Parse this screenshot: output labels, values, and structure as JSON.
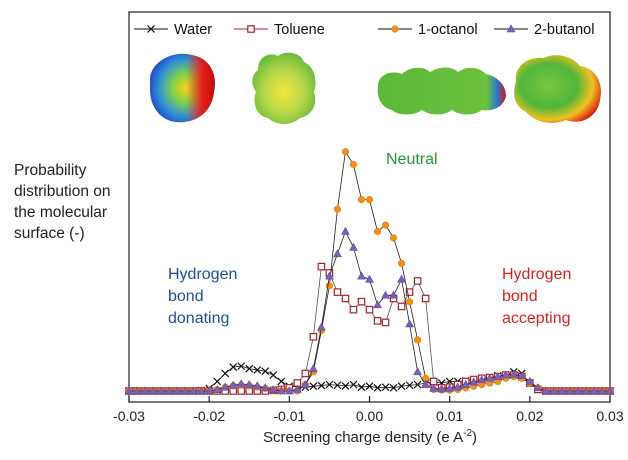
{
  "chart_data": {
    "type": "line",
    "title": "",
    "ylabel_lines": [
      "Probability",
      "distribution on",
      "the molecular",
      "surface (-)"
    ],
    "xlabel": "Screening charge density (e A",
    "xlabel_sup": "-2",
    "xlabel_end": ")",
    "xlim": [
      -0.03,
      0.03
    ],
    "ylim": [
      0,
      1
    ],
    "xticks": [
      -0.03,
      -0.02,
      -0.01,
      0.0,
      0.01,
      0.02,
      0.03
    ],
    "xtick_labels": [
      "-0.03",
      "-0.02",
      "-0.01",
      "0.00",
      "0.01",
      "0.02",
      "0.03"
    ],
    "legend_position": "top",
    "annotations": [
      {
        "id": "donating",
        "lines": [
          "Hydrogen",
          "bond",
          "donating"
        ],
        "color": "#1f4e9a"
      },
      {
        "id": "neutral",
        "lines": [
          "Neutral"
        ],
        "color": "#1e9a3a"
      },
      {
        "id": "accepting",
        "lines": [
          "Hydrogen",
          "bond",
          "accepting"
        ],
        "color": "#e02020"
      }
    ],
    "series": [
      {
        "name": "Water",
        "color": "#111111",
        "marker": "x",
        "x": [
          -0.03,
          -0.029,
          -0.028,
          -0.027,
          -0.026,
          -0.025,
          -0.024,
          -0.023,
          -0.022,
          -0.021,
          -0.02,
          -0.019,
          -0.018,
          -0.017,
          -0.016,
          -0.015,
          -0.014,
          -0.013,
          -0.012,
          -0.011,
          -0.01,
          -0.009,
          -0.008,
          -0.007,
          -0.006,
          -0.005,
          -0.004,
          -0.003,
          -0.002,
          -0.001,
          0.0,
          0.001,
          0.002,
          0.003,
          0.004,
          0.005,
          0.006,
          0.007,
          0.008,
          0.009,
          0.01,
          0.011,
          0.012,
          0.013,
          0.014,
          0.015,
          0.016,
          0.017,
          0.018,
          0.019,
          0.02,
          0.021,
          0.022,
          0.023,
          0.024,
          0.025,
          0.026,
          0.027,
          0.028,
          0.029,
          0.03
        ],
        "y": [
          0.0,
          0.0,
          0.0,
          0.0,
          0.0,
          0.0,
          0.0,
          0.0,
          0.0,
          0.002,
          0.008,
          0.03,
          0.055,
          0.075,
          0.078,
          0.07,
          0.066,
          0.062,
          0.05,
          0.03,
          0.015,
          0.013,
          0.012,
          0.015,
          0.017,
          0.02,
          0.018,
          0.016,
          0.02,
          0.012,
          0.015,
          0.01,
          0.012,
          0.01,
          0.015,
          0.018,
          0.02,
          0.025,
          0.028,
          0.025,
          0.03,
          0.03,
          0.032,
          0.036,
          0.04,
          0.042,
          0.048,
          0.05,
          0.06,
          0.055,
          0.025,
          0.005,
          0.0,
          0.0,
          0.0,
          0.0,
          0.0,
          0.0,
          0.0,
          0.0,
          0.0
        ]
      },
      {
        "name": "Toluene",
        "color": "#a8242c",
        "marker": "square",
        "x": [
          -0.03,
          -0.029,
          -0.028,
          -0.027,
          -0.026,
          -0.025,
          -0.024,
          -0.023,
          -0.022,
          -0.021,
          -0.02,
          -0.019,
          -0.018,
          -0.017,
          -0.016,
          -0.015,
          -0.014,
          -0.013,
          -0.012,
          -0.011,
          -0.01,
          -0.009,
          -0.008,
          -0.007,
          -0.006,
          -0.005,
          -0.004,
          -0.003,
          -0.002,
          -0.001,
          0.0,
          0.001,
          0.002,
          0.003,
          0.004,
          0.005,
          0.006,
          0.007,
          0.008,
          0.009,
          0.01,
          0.011,
          0.012,
          0.013,
          0.014,
          0.015,
          0.016,
          0.017,
          0.018,
          0.019,
          0.02,
          0.021,
          0.022,
          0.023,
          0.024,
          0.025,
          0.026,
          0.027,
          0.028,
          0.029,
          0.03
        ],
        "y": [
          0.0,
          0.0,
          0.0,
          0.0,
          0.0,
          0.0,
          0.0,
          0.0,
          0.0,
          0.0,
          0.0,
          0.0,
          0.0,
          0.0,
          0.0,
          0.0,
          0.0,
          0.0,
          0.002,
          0.005,
          0.01,
          0.025,
          0.055,
          0.17,
          0.39,
          0.37,
          0.31,
          0.29,
          0.255,
          0.28,
          0.255,
          0.22,
          0.215,
          0.29,
          0.265,
          0.31,
          0.345,
          0.29,
          0.03,
          0.01,
          0.012,
          0.02,
          0.03,
          0.036,
          0.04,
          0.042,
          0.045,
          0.05,
          0.05,
          0.045,
          0.025,
          0.005,
          0.0,
          0.0,
          0.0,
          0.0,
          0.0,
          0.0,
          0.0,
          0.0,
          0.0
        ]
      },
      {
        "name": "1-octanol",
        "color": "#f0901e",
        "marker": "circle",
        "x": [
          -0.03,
          -0.029,
          -0.028,
          -0.027,
          -0.026,
          -0.025,
          -0.024,
          -0.023,
          -0.022,
          -0.021,
          -0.02,
          -0.019,
          -0.018,
          -0.017,
          -0.016,
          -0.015,
          -0.014,
          -0.013,
          -0.012,
          -0.011,
          -0.01,
          -0.009,
          -0.008,
          -0.007,
          -0.006,
          -0.005,
          -0.004,
          -0.003,
          -0.002,
          -0.001,
          0.0,
          0.001,
          0.002,
          0.003,
          0.004,
          0.005,
          0.006,
          0.007,
          0.008,
          0.009,
          0.01,
          0.011,
          0.012,
          0.013,
          0.014,
          0.015,
          0.016,
          0.017,
          0.018,
          0.019,
          0.02,
          0.021,
          0.022,
          0.023,
          0.024,
          0.025,
          0.026,
          0.027,
          0.028,
          0.029,
          0.03
        ],
        "y": [
          0.0,
          0.0,
          0.0,
          0.0,
          0.0,
          0.0,
          0.0,
          0.0,
          0.0,
          0.0,
          0.0,
          0.004,
          0.012,
          0.016,
          0.018,
          0.016,
          0.012,
          0.008,
          0.003,
          0.0,
          0.0,
          0.0,
          0.02,
          0.06,
          0.19,
          0.33,
          0.57,
          0.75,
          0.71,
          0.6,
          0.6,
          0.5,
          0.52,
          0.48,
          0.4,
          0.28,
          0.16,
          0.04,
          0.005,
          0.003,
          0.003,
          0.005,
          0.01,
          0.015,
          0.02,
          0.025,
          0.03,
          0.04,
          0.045,
          0.04,
          0.025,
          0.01,
          0.0,
          0.0,
          0.0,
          0.0,
          0.0,
          0.0,
          0.0,
          0.0,
          0.0
        ]
      },
      {
        "name": "2-butanol",
        "color": "#7b60b8",
        "marker": "triangle",
        "x": [
          -0.03,
          -0.029,
          -0.028,
          -0.027,
          -0.026,
          -0.025,
          -0.024,
          -0.023,
          -0.022,
          -0.021,
          -0.02,
          -0.019,
          -0.018,
          -0.017,
          -0.016,
          -0.015,
          -0.014,
          -0.013,
          -0.012,
          -0.011,
          -0.01,
          -0.009,
          -0.008,
          -0.007,
          -0.006,
          -0.005,
          -0.004,
          -0.003,
          -0.002,
          -0.001,
          0.0,
          0.001,
          0.002,
          0.003,
          0.004,
          0.005,
          0.006,
          0.007,
          0.008,
          0.009,
          0.01,
          0.011,
          0.012,
          0.013,
          0.014,
          0.015,
          0.016,
          0.017,
          0.018,
          0.019,
          0.02,
          0.021,
          0.022,
          0.023,
          0.024,
          0.025,
          0.026,
          0.027,
          0.028,
          0.029,
          0.03
        ],
        "y": [
          0.0,
          0.0,
          0.0,
          0.0,
          0.0,
          0.0,
          0.0,
          0.0,
          0.0,
          0.0,
          0.0,
          0.004,
          0.012,
          0.018,
          0.022,
          0.02,
          0.016,
          0.01,
          0.004,
          0.0,
          0.0,
          0.005,
          0.02,
          0.07,
          0.2,
          0.36,
          0.43,
          0.5,
          0.45,
          0.36,
          0.35,
          0.27,
          0.3,
          0.3,
          0.35,
          0.21,
          0.06,
          0.02,
          0.008,
          0.006,
          0.008,
          0.012,
          0.02,
          0.028,
          0.035,
          0.04,
          0.045,
          0.05,
          0.052,
          0.048,
          0.03,
          0.01,
          0.0,
          0.0,
          0.0,
          0.0,
          0.0,
          0.0,
          0.0,
          0.0,
          0.0
        ]
      }
    ]
  }
}
